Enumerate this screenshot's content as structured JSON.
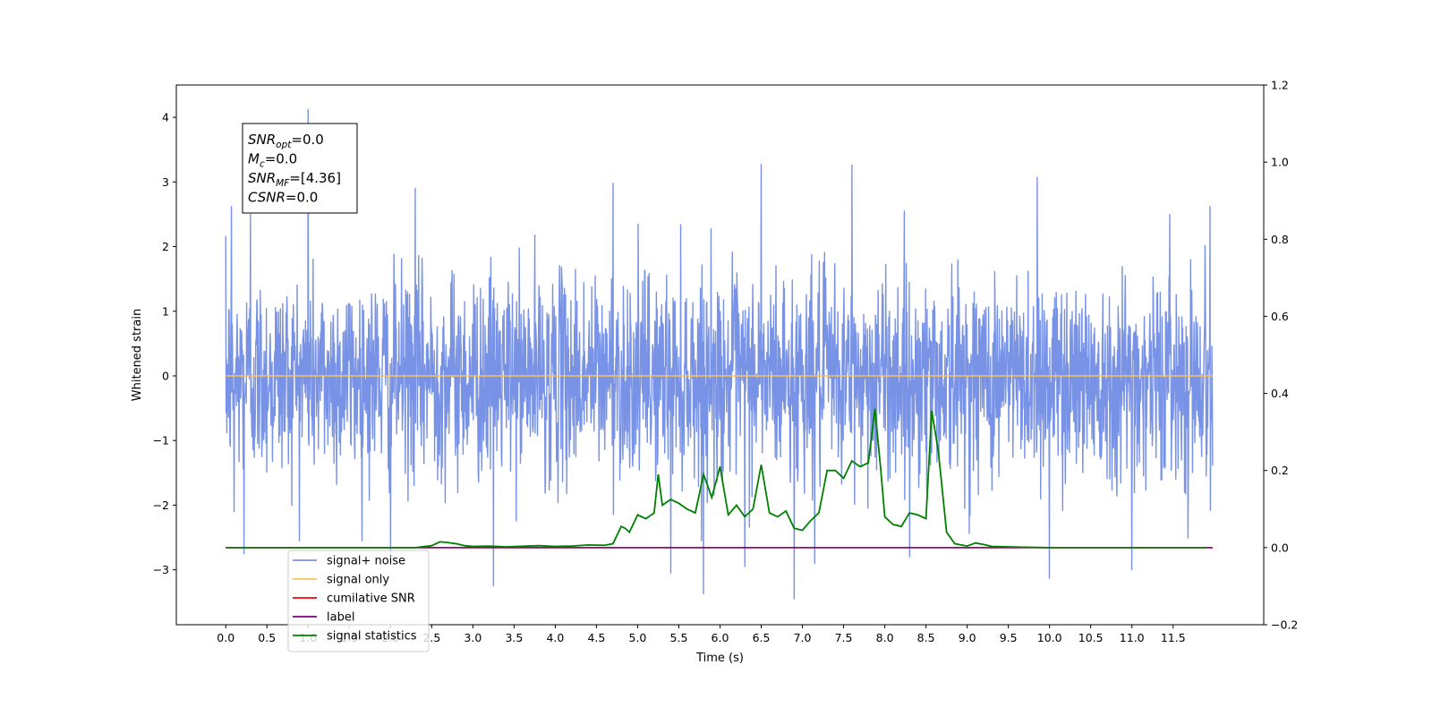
{
  "chart_data": {
    "type": "line",
    "xlabel": "Time (s)",
    "ylabel": "Whitened strain",
    "xlim": [
      -0.6,
      12.6
    ],
    "ylim": [
      -3.85,
      4.5
    ],
    "y2lim": [
      -0.2,
      1.2
    ],
    "x_ticks": [
      0.0,
      0.5,
      1.0,
      1.5,
      2.0,
      2.5,
      3.0,
      3.5,
      4.0,
      4.5,
      5.0,
      5.5,
      6.0,
      6.5,
      7.0,
      7.5,
      8.0,
      8.5,
      9.0,
      9.5,
      10.0,
      10.5,
      11.0,
      11.5
    ],
    "x_tick_labels": [
      "0.0",
      "0.5",
      "1.0",
      "1.5",
      "2.0",
      "2.5",
      "3.0",
      "3.5",
      "4.0",
      "4.5",
      "5.0",
      "5.5",
      "6.0",
      "6.5",
      "7.0",
      "7.5",
      "8.0",
      "8.5",
      "9.0",
      "9.5",
      "10.0",
      "10.5",
      "11.0",
      "11.5"
    ],
    "y_ticks": [
      -3,
      -2,
      -1,
      0,
      1,
      2,
      3,
      4
    ],
    "y_tick_labels": [
      "−3",
      "−2",
      "−1",
      "0",
      "1",
      "2",
      "3",
      "4"
    ],
    "y2_ticks": [
      -0.2,
      0.0,
      0.2,
      0.4,
      0.6,
      0.8,
      1.0,
      1.2
    ],
    "y2_tick_labels": [
      "−0.2",
      "0.0",
      "0.2",
      "0.4",
      "0.6",
      "0.8",
      "1.0",
      "1.2"
    ],
    "series": [
      {
        "name": "signal+ noise",
        "color": "#7892e6",
        "axis": "left",
        "kind": "noise",
        "x_start": 0.0,
        "x_end": 11.98,
        "typical_range": [
          -1.6,
          1.6
        ],
        "positive_peaks": [
          [
            0.07,
            2.62
          ],
          [
            0.3,
            2.5
          ],
          [
            1.0,
            4.12
          ],
          [
            2.3,
            2.9
          ],
          [
            4.7,
            2.98
          ],
          [
            6.5,
            3.27
          ],
          [
            7.6,
            3.26
          ],
          [
            9.85,
            3.07
          ],
          [
            11.0,
            2.97
          ],
          [
            11.95,
            2.62
          ]
        ],
        "negative_peaks": [
          [
            0.1,
            -2.1
          ],
          [
            0.22,
            -2.75
          ],
          [
            2.0,
            -2.8
          ],
          [
            3.25,
            -3.25
          ],
          [
            5.4,
            -3.05
          ],
          [
            5.8,
            -3.37
          ],
          [
            6.3,
            -2.95
          ],
          [
            6.9,
            -3.45
          ],
          [
            7.15,
            -2.9
          ],
          [
            8.3,
            -2.8
          ],
          [
            10.0,
            -3.13
          ],
          [
            11.0,
            -3.0
          ],
          [
            11.9,
            -1.55
          ]
        ]
      },
      {
        "name": "signal only",
        "color": "#ffbf5a",
        "axis": "left",
        "x": [
          0.0,
          11.98
        ],
        "values": [
          0.0,
          0.0
        ]
      },
      {
        "name": "cumilative SNR",
        "color": "#ff0000",
        "axis": "right",
        "x": [
          0.0,
          11.98
        ],
        "values": [
          0.0,
          0.0
        ]
      },
      {
        "name": "label",
        "color": "#800080",
        "axis": "right",
        "x": [
          0.0,
          11.98
        ],
        "values": [
          0.0,
          0.0
        ]
      },
      {
        "name": "signal statistics",
        "color": "#008000",
        "axis": "right",
        "x": [
          0.0,
          2.3,
          2.5,
          2.6,
          2.7,
          2.8,
          2.9,
          3.0,
          3.2,
          3.4,
          3.8,
          4.0,
          4.2,
          4.4,
          4.6,
          4.7,
          4.8,
          4.85,
          4.9,
          5.0,
          5.1,
          5.2,
          5.25,
          5.3,
          5.4,
          5.5,
          5.6,
          5.7,
          5.8,
          5.9,
          6.0,
          6.1,
          6.2,
          6.3,
          6.4,
          6.5,
          6.6,
          6.7,
          6.8,
          6.9,
          7.0,
          7.1,
          7.2,
          7.3,
          7.4,
          7.5,
          7.6,
          7.7,
          7.8,
          7.88,
          7.95,
          8.0,
          8.1,
          8.2,
          8.3,
          8.4,
          8.5,
          8.57,
          8.65,
          8.75,
          8.85,
          9.0,
          9.1,
          9.2,
          9.3,
          9.5,
          9.7,
          10.0,
          11.0,
          11.9
        ],
        "values": [
          0.0,
          0.0,
          0.005,
          0.015,
          0.013,
          0.01,
          0.005,
          0.003,
          0.004,
          0.002,
          0.005,
          0.003,
          0.004,
          0.007,
          0.006,
          0.01,
          0.055,
          0.05,
          0.04,
          0.085,
          0.075,
          0.09,
          0.19,
          0.11,
          0.125,
          0.115,
          0.1,
          0.09,
          0.19,
          0.13,
          0.21,
          0.085,
          0.11,
          0.08,
          0.1,
          0.215,
          0.09,
          0.08,
          0.095,
          0.05,
          0.045,
          0.07,
          0.09,
          0.2,
          0.2,
          0.18,
          0.225,
          0.21,
          0.22,
          0.36,
          0.205,
          0.08,
          0.06,
          0.055,
          0.09,
          0.085,
          0.075,
          0.355,
          0.25,
          0.04,
          0.01,
          0.004,
          0.012,
          0.008,
          0.003,
          0.002,
          0.001,
          0.0,
          0.0,
          0.0
        ]
      }
    ],
    "legend": {
      "placement": "lower-left",
      "entries": [
        {
          "label": "signal+ noise",
          "color": "#7892e6"
        },
        {
          "label": "signal only",
          "color": "#ffbf5a"
        },
        {
          "label": "cumilative SNR",
          "color": "#ff0000"
        },
        {
          "label": "label",
          "color": "#800080"
        },
        {
          "label": "signal statistics",
          "color": "#008000"
        }
      ]
    },
    "annotation_box": {
      "placement": "upper-left",
      "lines": [
        {
          "name": "SNR",
          "sub": "opt",
          "value": "=0.0"
        },
        {
          "name": "M",
          "sub": "c",
          "value": "=0.0"
        },
        {
          "name": "SNR",
          "sub": "MF",
          "value": "=[4.36]"
        },
        {
          "name": "CSNR",
          "sub": "",
          "value": "=0.0"
        }
      ]
    },
    "grid": false
  }
}
